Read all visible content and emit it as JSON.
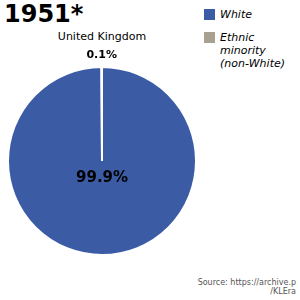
{
  "chart_data": {
    "type": "pie",
    "title": "United Kingdom",
    "categories": [
      "White",
      "Ethnic minority\n(non-White)"
    ],
    "values": [
      99.9,
      0.1
    ],
    "value_labels": [
      "99.9%",
      "0.1%"
    ],
    "data_labels": true,
    "colors": [
      "#3B5BA5",
      "#A8A090"
    ],
    "legend": "right",
    "annotations": [
      "1951*",
      "Source: https://archive.p\n/KLEra"
    ]
  }
}
